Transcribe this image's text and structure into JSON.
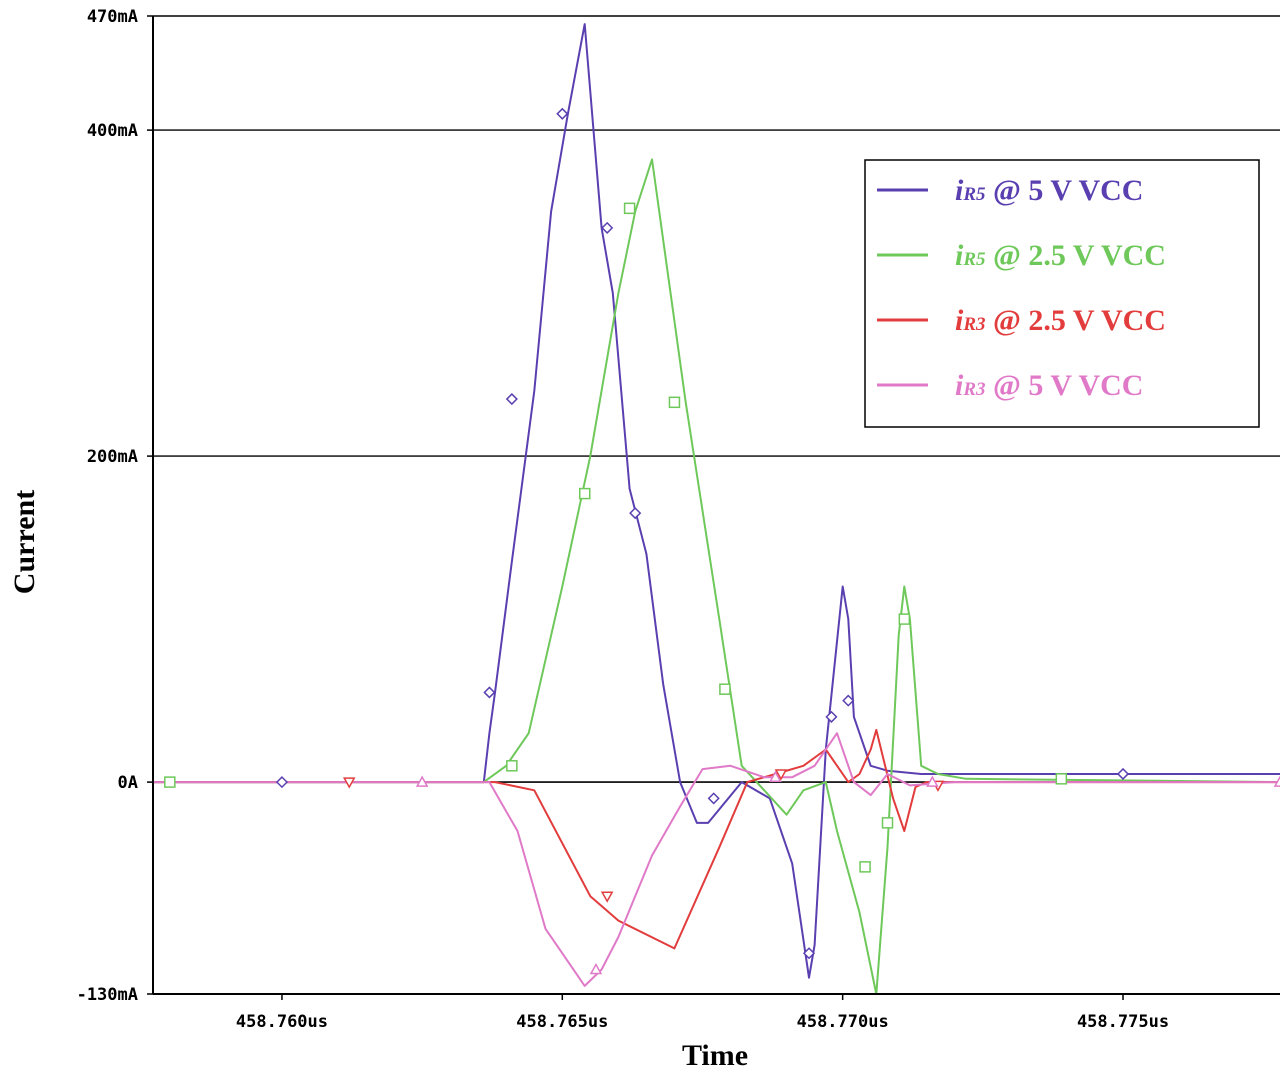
{
  "chart_data": {
    "type": "line",
    "xlabel": "Time",
    "ylabel": "Current",
    "xlim": [
      458.7577,
      458.7778
    ],
    "ylim": [
      -130,
      470
    ],
    "x_ticks": [
      {
        "value": 458.76,
        "label": "458.760us"
      },
      {
        "value": 458.765,
        "label": "458.765us"
      },
      {
        "value": 458.77,
        "label": "458.770us"
      },
      {
        "value": 458.775,
        "label": "458.775us"
      }
    ],
    "y_ticks": [
      {
        "value": 470,
        "label": "470mA"
      },
      {
        "value": 400,
        "label": "400mA"
      },
      {
        "value": 200,
        "label": "200mA"
      },
      {
        "value": 0,
        "label": "0A"
      },
      {
        "value": -130,
        "label": "-130mA"
      }
    ],
    "grid_y": [
      470,
      400,
      200,
      0
    ],
    "legend_position": "top-right",
    "series": [
      {
        "name": "iR5 @ 5 V VCC",
        "color": "#5a3fb0",
        "marker": "diamond",
        "legend_main": "iR5",
        "legend_rest": "@ 5 V VCC",
        "x": [
          458.7577,
          458.7636,
          458.7637,
          458.7638,
          458.7641,
          458.7645,
          458.7648,
          458.7651,
          458.7654,
          458.7657,
          458.7659,
          458.7662,
          458.7665,
          458.7668,
          458.7671,
          458.7674,
          458.7676,
          458.7682,
          458.7687,
          458.7691,
          458.7694,
          458.7695,
          458.7697,
          458.77,
          458.7701,
          458.7702,
          458.7705,
          458.7708,
          458.7714,
          458.7725,
          458.775,
          458.7778
        ],
        "y": [
          0,
          0,
          30,
          55,
          135,
          240,
          350,
          410,
          465,
          340,
          300,
          180,
          140,
          60,
          0,
          -25,
          -25,
          0,
          -10,
          -50,
          -120,
          -100,
          20,
          120,
          100,
          40,
          10,
          7,
          5,
          5,
          5,
          5
        ],
        "marker_x": [
          458.76,
          458.7637,
          458.7641,
          458.765,
          458.7658,
          458.7663,
          458.7677,
          458.7694,
          458.7698,
          458.7701,
          458.775
        ],
        "marker_y": [
          0,
          55,
          235,
          410,
          340,
          165,
          -10,
          -105,
          40,
          50,
          5
        ]
      },
      {
        "name": "iR5 @ 2.5 V VCC",
        "color": "#6ec85a",
        "marker": "square",
        "legend_main": "iR5",
        "legend_rest": "@ 2.5 V VCC",
        "x": [
          458.7577,
          458.7636,
          458.764,
          458.7644,
          458.765,
          458.7655,
          458.766,
          458.7663,
          458.7666,
          458.7672,
          458.7678,
          458.7682,
          458.769,
          458.7693,
          458.7697,
          458.7699,
          458.7703,
          458.7706,
          458.7708,
          458.771,
          458.7711,
          458.7712,
          458.7714,
          458.7717,
          458.7722,
          458.7778
        ],
        "y": [
          0,
          0,
          10,
          30,
          120,
          200,
          300,
          350,
          382,
          233,
          100,
          10,
          -20,
          -5,
          0,
          -30,
          -80,
          -130,
          -40,
          90,
          120,
          100,
          10,
          5,
          2,
          0
        ],
        "marker_x": [
          458.758,
          458.7641,
          458.7654,
          458.7662,
          458.767,
          458.7679,
          458.7704,
          458.7708,
          458.7711,
          458.7739
        ],
        "marker_y": [
          0,
          10,
          177,
          352,
          233,
          57,
          -52,
          -25,
          100,
          2
        ]
      },
      {
        "name": "iR3 @ 2.5 V VCC",
        "color": "#e23c3c",
        "marker": "triangle-down",
        "legend_main": "iR3",
        "legend_rest": "@ 2.5 V VCC",
        "x": [
          458.7577,
          458.7638,
          458.7645,
          458.7655,
          458.766,
          458.767,
          458.7678,
          458.7683,
          458.7688,
          458.7693,
          458.7697,
          458.7701,
          458.7703,
          458.7705,
          458.7706,
          458.7709,
          458.7711,
          458.7713,
          458.7715,
          458.772,
          458.7778
        ],
        "y": [
          0,
          0,
          -5,
          -70,
          -85,
          -102,
          -40,
          0,
          5,
          10,
          20,
          0,
          5,
          20,
          32,
          -10,
          -30,
          -3,
          0,
          0,
          0
        ],
        "marker_x": [
          458.7612,
          458.7658,
          458.7689,
          458.7717
        ],
        "marker_y": [
          0,
          -70,
          5,
          -2
        ]
      },
      {
        "name": "iR3 @ 5 V VCC",
        "color": "#e07ac8",
        "marker": "triangle-up",
        "legend_main": "iR3",
        "legend_rest": "@ 5 V VCC",
        "x": [
          458.7577,
          458.7637,
          458.7642,
          458.7647,
          458.7651,
          458.7654,
          458.7657,
          458.766,
          458.7666,
          458.7671,
          458.7675,
          458.768,
          458.7686,
          458.7691,
          458.7695,
          458.7699,
          458.7702,
          458.7705,
          458.7708,
          458.7712,
          458.772,
          458.7778
        ],
        "y": [
          0,
          0,
          -30,
          -90,
          -110,
          -125,
          -115,
          -95,
          -45,
          -15,
          8,
          10,
          3,
          3,
          10,
          30,
          0,
          -8,
          5,
          -2,
          0,
          0
        ],
        "marker_x": [
          458.7625,
          458.7656,
          458.7688,
          458.7716,
          458.7778
        ],
        "marker_y": [
          0,
          -115,
          3,
          0,
          0
        ]
      }
    ]
  }
}
